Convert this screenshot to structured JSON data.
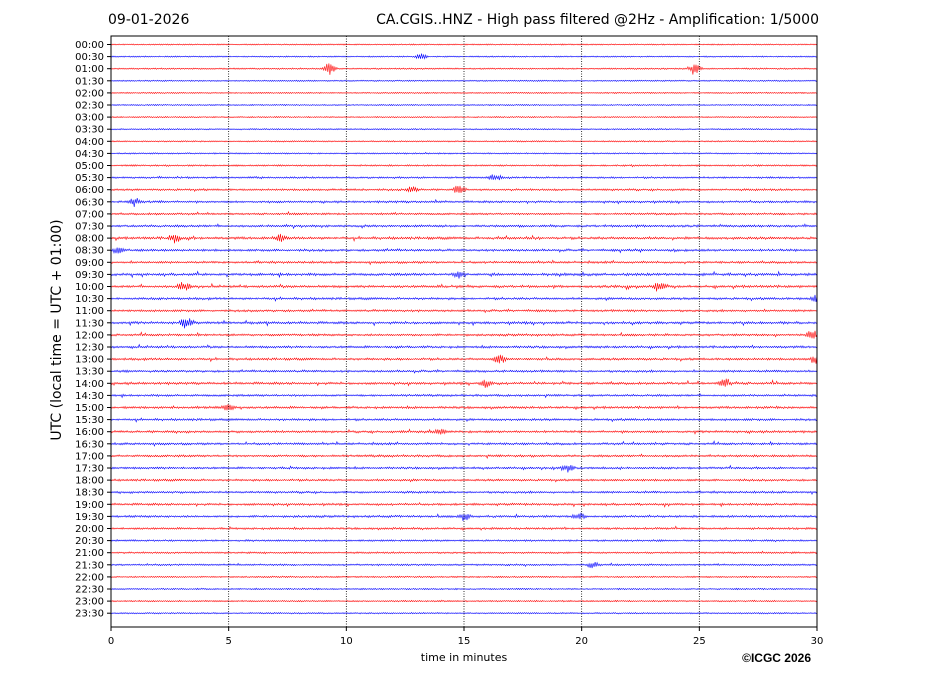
{
  "date": "09-01-2026",
  "title": "CA.CGIS..HNZ - High pass filtered @2Hz - Amplification: 1/5000",
  "copyright": "©ICGC 2026",
  "colors": {
    "red": "#ff0000",
    "blue": "#0000ff",
    "grid": "#000000"
  },
  "chart_data": {
    "type": "line",
    "xlabel": "time in minutes",
    "ylabel": "UTC (local time = UTC + 01:00)",
    "xlim": [
      0,
      30
    ],
    "xticks": [
      0,
      5,
      10,
      15,
      20,
      25,
      30
    ],
    "vertical_gridlines": [
      5,
      10,
      15,
      20,
      25
    ],
    "grid": "dotted vertical",
    "rows": [
      "00:00",
      "00:30",
      "01:00",
      "01:30",
      "02:00",
      "02:30",
      "03:00",
      "03:30",
      "04:00",
      "04:30",
      "05:00",
      "05:30",
      "06:00",
      "06:30",
      "07:00",
      "07:30",
      "08:00",
      "08:30",
      "09:00",
      "09:30",
      "10:00",
      "10:30",
      "11:00",
      "11:30",
      "12:00",
      "12:30",
      "13:00",
      "13:30",
      "14:00",
      "14:30",
      "15:00",
      "15:30",
      "16:00",
      "16:30",
      "17:00",
      "17:30",
      "18:00",
      "18:30",
      "19:00",
      "19:30",
      "20:00",
      "20:30",
      "21:00",
      "21:30",
      "22:00",
      "22:30",
      "23:00",
      "23:30"
    ],
    "row_colors_cycle": [
      "red",
      "blue"
    ],
    "activity_level": [
      0.05,
      0.05,
      0.08,
      0.05,
      0.05,
      0.05,
      0.04,
      0.05,
      0.08,
      0.12,
      0.25,
      0.35,
      0.45,
      0.5,
      0.4,
      0.6,
      0.75,
      0.6,
      0.55,
      0.75,
      0.7,
      0.6,
      0.55,
      0.7,
      0.55,
      0.6,
      0.6,
      0.55,
      0.65,
      0.5,
      0.6,
      0.55,
      0.6,
      0.55,
      0.55,
      0.5,
      0.5,
      0.5,
      0.55,
      0.55,
      0.45,
      0.35,
      0.3,
      0.3,
      0.2,
      0.15,
      0.15,
      0.1
    ],
    "events": [
      {
        "row": "00:30",
        "t": 13.2,
        "amp": 0.4
      },
      {
        "row": "01:00",
        "t": 9.3,
        "amp": 0.9
      },
      {
        "row": "01:00",
        "t": 24.8,
        "amp": 0.9
      },
      {
        "row": "05:30",
        "t": 16.3,
        "amp": 0.5
      },
      {
        "row": "06:00",
        "t": 14.8,
        "amp": 0.7
      },
      {
        "row": "06:00",
        "t": 12.8,
        "amp": 0.45
      },
      {
        "row": "06:30",
        "t": 1.0,
        "amp": 0.6
      },
      {
        "row": "08:00",
        "t": 2.7,
        "amp": 0.6
      },
      {
        "row": "08:00",
        "t": 7.2,
        "amp": 0.5
      },
      {
        "row": "08:30",
        "t": 0.3,
        "amp": 0.6
      },
      {
        "row": "09:30",
        "t": 14.8,
        "amp": 0.5
      },
      {
        "row": "10:00",
        "t": 3.1,
        "amp": 0.7
      },
      {
        "row": "10:00",
        "t": 23.3,
        "amp": 0.7
      },
      {
        "row": "10:30",
        "t": 30.0,
        "amp": 0.7
      },
      {
        "row": "11:30",
        "t": 3.2,
        "amp": 0.8
      },
      {
        "row": "12:00",
        "t": 29.8,
        "amp": 0.6
      },
      {
        "row": "13:00",
        "t": 16.5,
        "amp": 0.8
      },
      {
        "row": "13:00",
        "t": 30.0,
        "amp": 0.6
      },
      {
        "row": "14:00",
        "t": 15.9,
        "amp": 0.7
      },
      {
        "row": "14:00",
        "t": 26.1,
        "amp": 0.7
      },
      {
        "row": "15:00",
        "t": 5.0,
        "amp": 0.5
      },
      {
        "row": "16:00",
        "t": 14.0,
        "amp": 0.5
      },
      {
        "row": "17:30",
        "t": 19.4,
        "amp": 0.6
      },
      {
        "row": "19:30",
        "t": 15.0,
        "amp": 0.5
      },
      {
        "row": "19:30",
        "t": 19.9,
        "amp": 0.5
      },
      {
        "row": "21:30",
        "t": 20.5,
        "amp": 0.5
      }
    ]
  }
}
